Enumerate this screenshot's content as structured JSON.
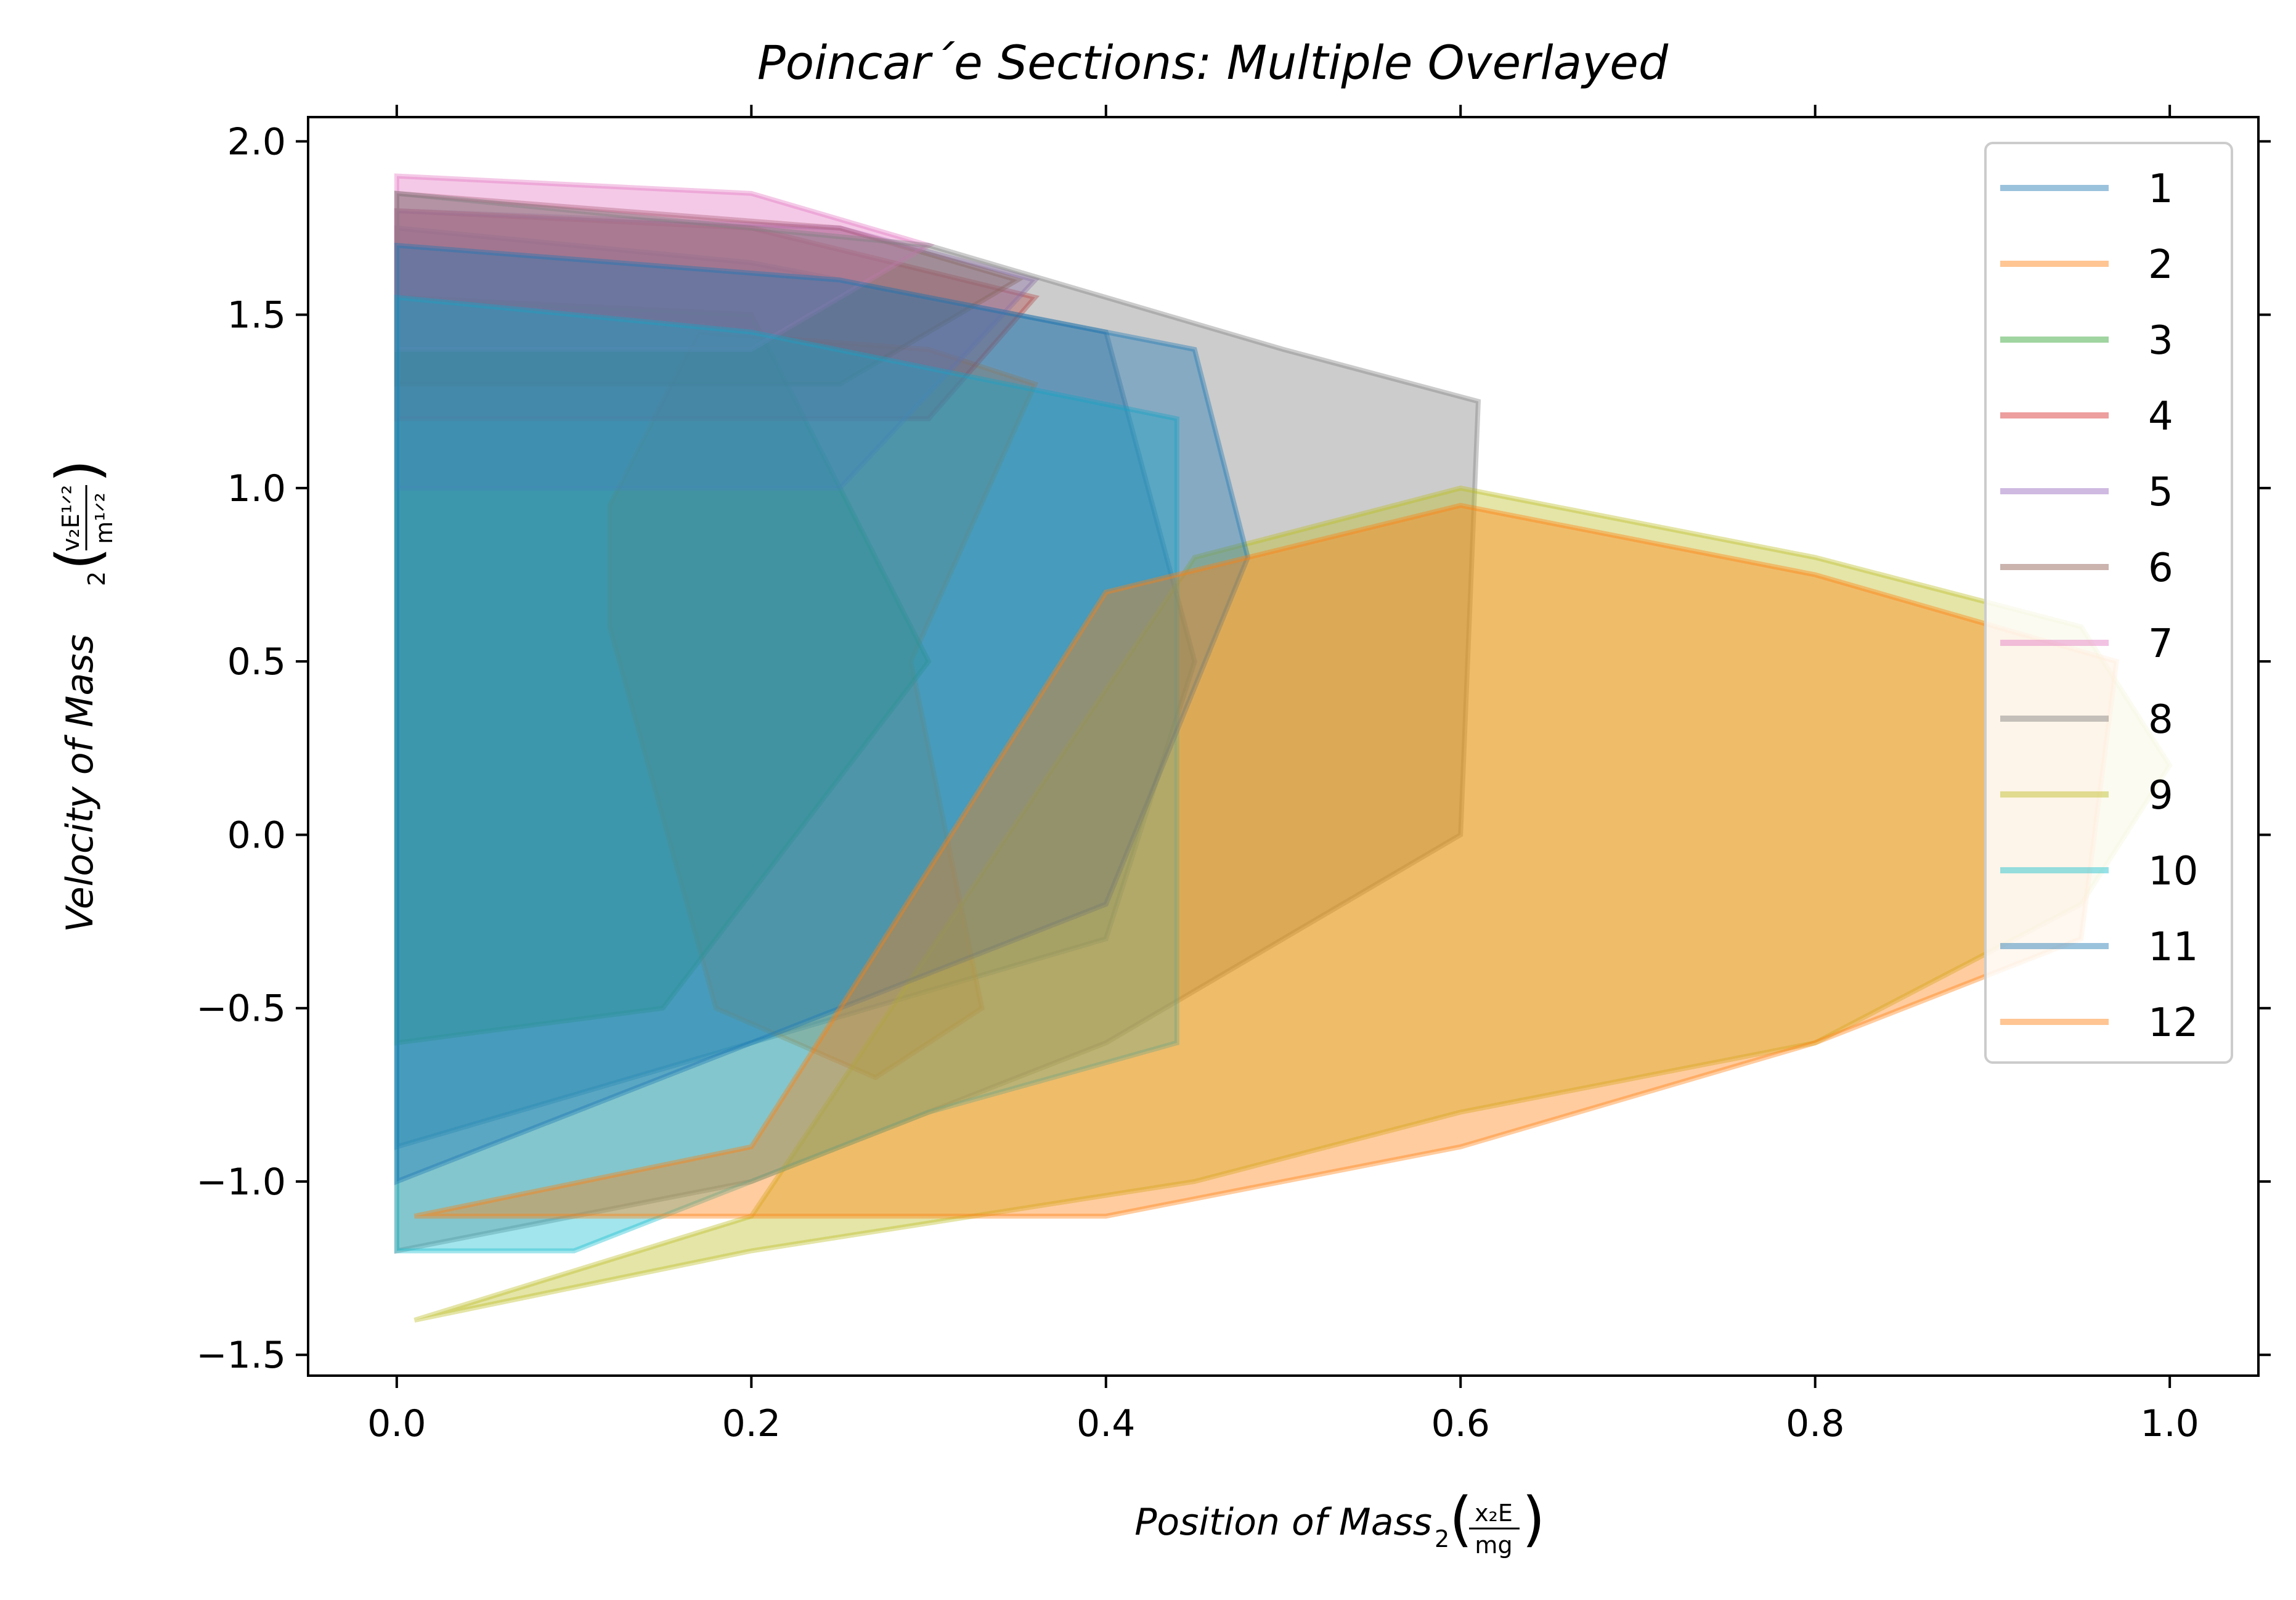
{
  "chart_data": {
    "type": "line",
    "title": "Poincar´e Sections: Multiple Overlayed",
    "xlabel": {
      "text": "Position of Mass",
      "sub": "2",
      "frac_num": "x₂E",
      "frac_den": "mg"
    },
    "ylabel": {
      "text": "Velocity of Mass",
      "sub": "2",
      "frac_num": "v₂E¹ᐟ²",
      "frac_den": "m¹ᐟ²"
    },
    "xlim": [
      -0.05,
      1.05
    ],
    "ylim": [
      -1.56,
      2.07
    ],
    "xticks": [
      0.0,
      0.2,
      0.4,
      0.6,
      0.8,
      1.0
    ],
    "xtick_labels": [
      "0.0",
      "0.2",
      "0.4",
      "0.6",
      "0.8",
      "1.0"
    ],
    "yticks": [
      -1.5,
      -1.0,
      -0.5,
      0.0,
      0.5,
      1.0,
      1.5,
      2.0
    ],
    "ytick_labels": [
      "−1.5",
      "−1.0",
      "−0.5",
      "0.0",
      "0.5",
      "1.0",
      "1.5",
      "2.0"
    ],
    "grid": false,
    "legend_position": "top-right",
    "series": [
      {
        "name": "1",
        "color": "#1f77b4",
        "opacity": 0.4,
        "regions": [
          {
            "x": [
              0.0,
              0.0,
              0.2,
              0.4,
              0.45,
              0.4,
              0.2,
              0.0
            ],
            "y": [
              -0.9,
              1.75,
              1.65,
              1.45,
              0.5,
              -0.3,
              -0.6,
              -0.9
            ]
          }
        ]
      },
      {
        "name": "2",
        "color": "#ff7f0e",
        "opacity": 0.4,
        "regions": [
          {
            "x": [
              0.12,
              0.17,
              0.3,
              0.36,
              0.29,
              0.33,
              0.27,
              0.18,
              0.12
            ],
            "y": [
              0.95,
              1.45,
              1.4,
              1.3,
              0.5,
              -0.5,
              -0.7,
              -0.5,
              0.6
            ]
          }
        ]
      },
      {
        "name": "3",
        "color": "#2ca02c",
        "opacity": 0.4,
        "regions": [
          {
            "x": [
              0.0,
              0.0,
              0.2,
              0.3,
              0.15,
              0.0
            ],
            "y": [
              -0.6,
              1.55,
              1.5,
              0.5,
              -0.5,
              -0.6
            ]
          }
        ]
      },
      {
        "name": "4",
        "color": "#d62728",
        "opacity": 0.4,
        "regions": [
          {
            "x": [
              0.0,
              0.0,
              0.2,
              0.36,
              0.3,
              0.0
            ],
            "y": [
              1.2,
              1.8,
              1.75,
              1.55,
              1.2,
              1.2
            ]
          }
        ]
      },
      {
        "name": "5",
        "color": "#9467bd",
        "opacity": 0.4,
        "regions": [
          {
            "x": [
              0.0,
              0.0,
              0.25,
              0.36,
              0.25,
              0.0
            ],
            "y": [
              1.0,
              1.8,
              1.75,
              1.6,
              1.0,
              1.0
            ]
          }
        ]
      },
      {
        "name": "6",
        "color": "#8c564b",
        "opacity": 0.4,
        "regions": [
          {
            "x": [
              0.0,
              0.0,
              0.25,
              0.35,
              0.25,
              0.0
            ],
            "y": [
              1.3,
              1.85,
              1.75,
              1.6,
              1.3,
              1.3
            ]
          }
        ]
      },
      {
        "name": "7",
        "color": "#e377c2",
        "opacity": 0.4,
        "regions": [
          {
            "x": [
              0.0,
              0.0,
              0.2,
              0.3,
              0.2,
              0.0
            ],
            "y": [
              1.4,
              1.9,
              1.85,
              1.7,
              1.4,
              1.4
            ]
          }
        ]
      },
      {
        "name": "8",
        "color": "#7f7f7f",
        "opacity": 0.4,
        "regions": [
          {
            "x": [
              0.0,
              0.0,
              0.3,
              0.5,
              0.61,
              0.6,
              0.4,
              0.2,
              0.0
            ],
            "y": [
              -1.2,
              1.85,
              1.7,
              1.4,
              1.25,
              0.0,
              -0.6,
              -1.0,
              -1.2
            ]
          }
        ]
      },
      {
        "name": "9",
        "color": "#bcbd22",
        "opacity": 0.4,
        "regions": [
          {
            "x": [
              0.01,
              0.2,
              0.45,
              0.6,
              0.8,
              0.95,
              1.0,
              0.95,
              0.8,
              0.6,
              0.45,
              0.2,
              0.01
            ],
            "y": [
              -1.4,
              -1.1,
              0.8,
              1.0,
              0.8,
              0.6,
              0.2,
              -0.2,
              -0.6,
              -0.8,
              -1.0,
              -1.2,
              -1.4
            ]
          }
        ]
      },
      {
        "name": "10",
        "color": "#17becf",
        "opacity": 0.4,
        "regions": [
          {
            "x": [
              0.0,
              0.0,
              0.2,
              0.44,
              0.44,
              0.3,
              0.1,
              0.0
            ],
            "y": [
              -1.2,
              1.55,
              1.45,
              1.2,
              -0.6,
              -0.8,
              -1.2,
              -1.2
            ]
          }
        ]
      },
      {
        "name": "11",
        "color": "#1f77b4",
        "opacity": 0.4,
        "regions": [
          {
            "x": [
              0.0,
              0.0,
              0.25,
              0.45,
              0.48,
              0.4,
              0.2,
              0.0
            ],
            "y": [
              -1.0,
              1.7,
              1.6,
              1.4,
              0.8,
              -0.2,
              -0.6,
              -1.0
            ]
          }
        ]
      },
      {
        "name": "12",
        "color": "#ff7f0e",
        "opacity": 0.4,
        "regions": [
          {
            "x": [
              0.01,
              0.2,
              0.4,
              0.6,
              0.8,
              0.97,
              0.95,
              0.8,
              0.6,
              0.4,
              0.2,
              0.01
            ],
            "y": [
              -1.1,
              -0.9,
              0.7,
              0.95,
              0.75,
              0.5,
              -0.3,
              -0.6,
              -0.9,
              -1.1,
              -1.1,
              -1.1
            ]
          }
        ]
      }
    ]
  }
}
